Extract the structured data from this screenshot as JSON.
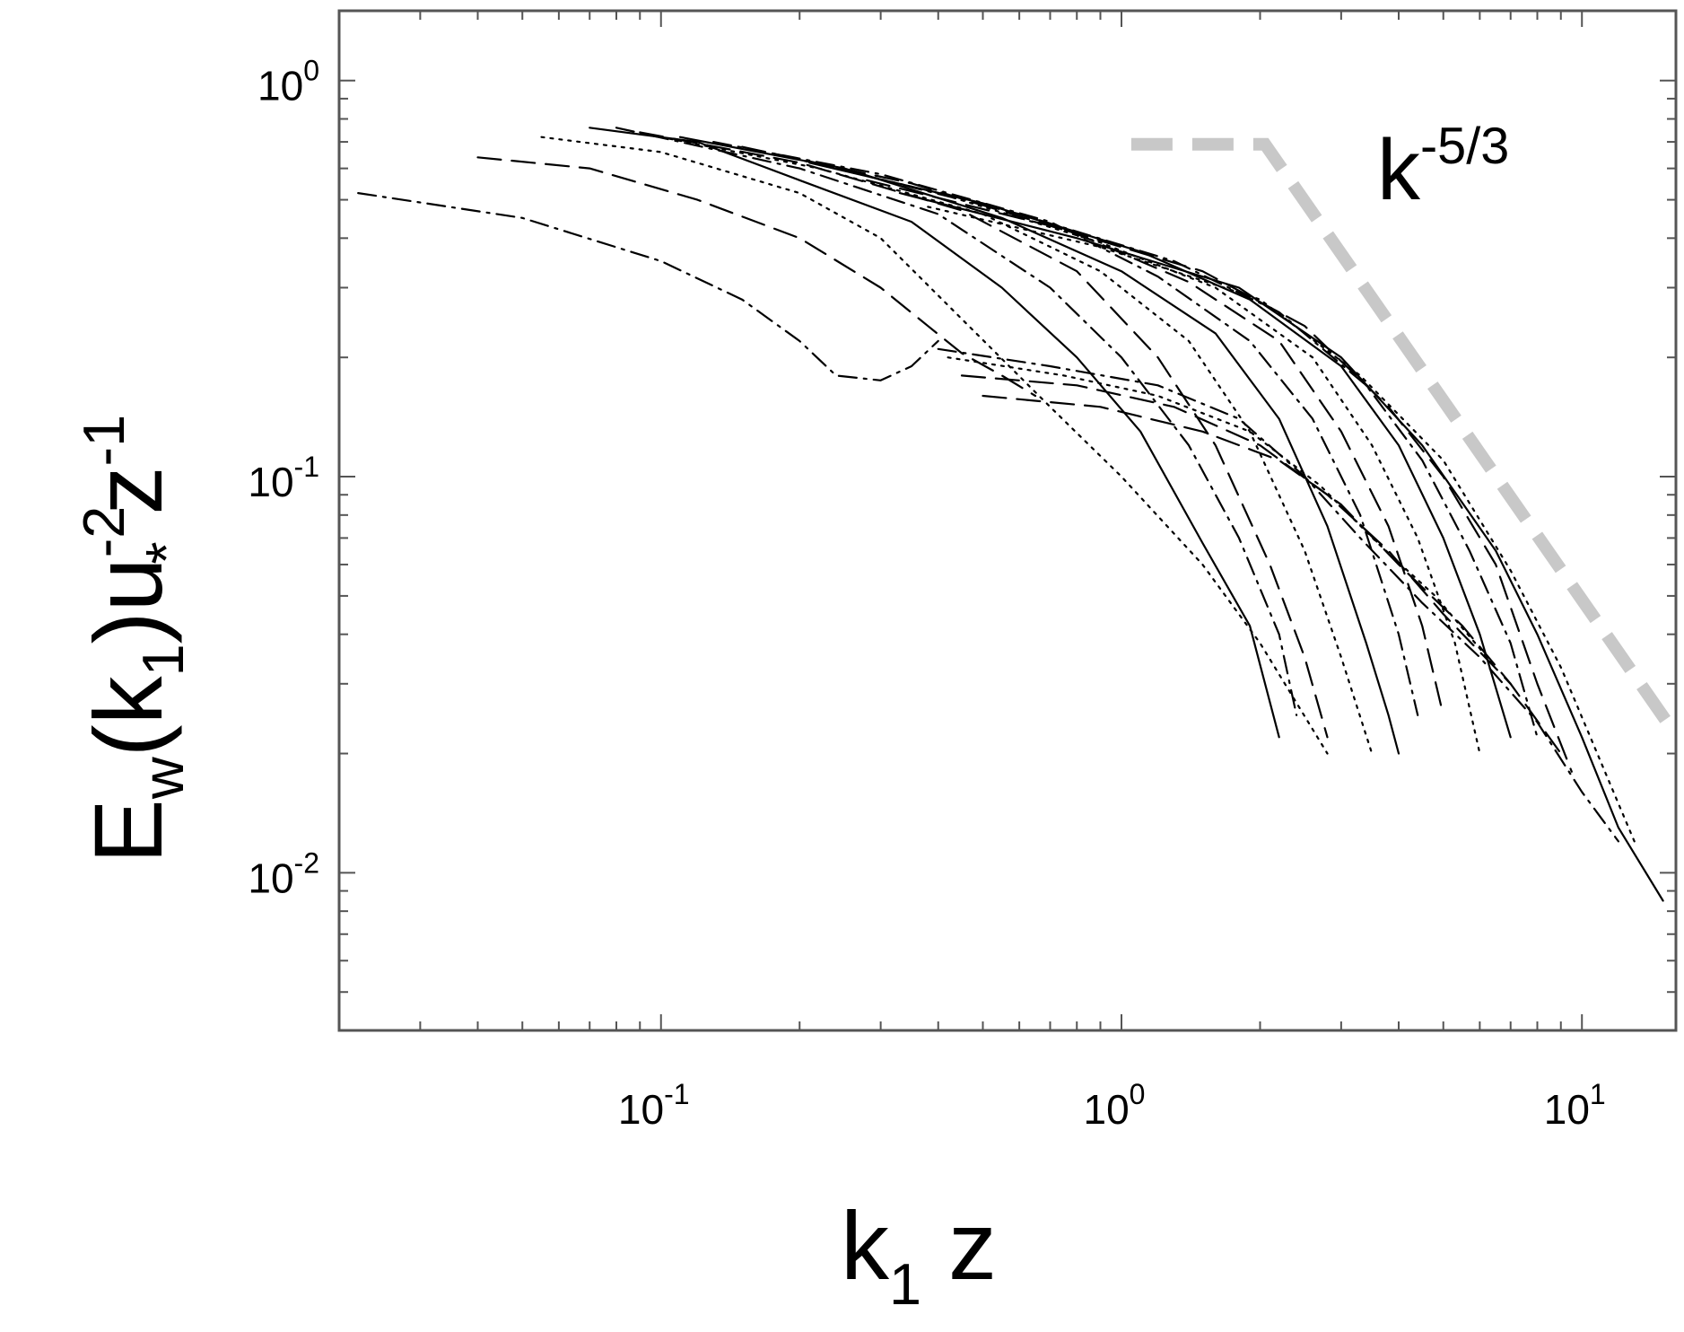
{
  "chart_data": {
    "type": "line",
    "xscale": "log",
    "yscale": "log",
    "xlim": [
      0.02,
      16
    ],
    "ylim": [
      0.004,
      1.5
    ],
    "grid": false,
    "legend": "none",
    "xlabel": {
      "base": "k",
      "sub": "1",
      "rest": " z"
    },
    "ylabel": {
      "p1": "E",
      "p1_sub": "w",
      "p2": "(k",
      "p2_sub": "1",
      "p3": ")u",
      "p3_sup": "-2",
      "p3_sub": "*",
      "p4": " z",
      "p4_sup": "-1"
    },
    "x_tick_labels": [
      {
        "value": 0.1,
        "base": "10",
        "exp": "-1"
      },
      {
        "value": 1,
        "base": "10",
        "exp": "0"
      },
      {
        "value": 10,
        "base": "10",
        "exp": "1"
      }
    ],
    "y_tick_labels": [
      {
        "value": 1,
        "base": "10",
        "exp": "0"
      },
      {
        "value": 0.1,
        "base": "10",
        "exp": "-1"
      },
      {
        "value": 0.01,
        "base": "10",
        "exp": "-2"
      }
    ],
    "reference_line": {
      "label_base": "k",
      "label_exp": "-5/3",
      "color": "#c8c8c8",
      "points": [
        [
          1.05,
          0.69
        ],
        [
          2.05,
          0.69
        ],
        [
          16,
          0.0223
        ]
      ]
    },
    "line_color": "#000000",
    "series": [
      {
        "style": "dashdot",
        "points": [
          [
            0.022,
            0.52
          ],
          [
            0.05,
            0.45
          ],
          [
            0.1,
            0.35
          ],
          [
            0.15,
            0.28
          ],
          [
            0.2,
            0.22
          ],
          [
            0.24,
            0.18
          ],
          [
            0.3,
            0.175
          ],
          [
            0.35,
            0.19
          ],
          [
            0.4,
            0.22
          ]
        ]
      },
      {
        "style": "dash",
        "points": [
          [
            0.04,
            0.64
          ],
          [
            0.07,
            0.6
          ],
          [
            0.12,
            0.5
          ],
          [
            0.2,
            0.4
          ],
          [
            0.3,
            0.3
          ],
          [
            0.38,
            0.24
          ],
          [
            0.45,
            0.205
          ],
          [
            0.55,
            0.18
          ],
          [
            0.65,
            0.16
          ]
        ]
      },
      {
        "style": "dot",
        "points": [
          [
            0.055,
            0.72
          ],
          [
            0.1,
            0.66
          ],
          [
            0.2,
            0.52
          ],
          [
            0.3,
            0.4
          ],
          [
            0.45,
            0.25
          ],
          [
            0.7,
            0.15
          ],
          [
            1.0,
            0.1
          ],
          [
            1.5,
            0.06
          ],
          [
            2.0,
            0.038
          ],
          [
            2.8,
            0.02
          ]
        ]
      },
      {
        "style": "solid",
        "points": [
          [
            0.07,
            0.76
          ],
          [
            0.12,
            0.7
          ],
          [
            0.2,
            0.56
          ],
          [
            0.35,
            0.44
          ],
          [
            0.55,
            0.3
          ],
          [
            0.8,
            0.2
          ],
          [
            1.1,
            0.13
          ],
          [
            1.5,
            0.068
          ],
          [
            1.9,
            0.042
          ],
          [
            2.2,
            0.022
          ]
        ]
      },
      {
        "style": "dashdot",
        "points": [
          [
            0.08,
            0.76
          ],
          [
            0.2,
            0.6
          ],
          [
            0.4,
            0.46
          ],
          [
            0.7,
            0.3
          ],
          [
            1.0,
            0.2
          ],
          [
            1.4,
            0.12
          ],
          [
            1.8,
            0.07
          ],
          [
            2.2,
            0.04
          ],
          [
            2.4,
            0.025
          ]
        ]
      },
      {
        "style": "dash",
        "points": [
          [
            0.09,
            0.74
          ],
          [
            0.2,
            0.62
          ],
          [
            0.45,
            0.47
          ],
          [
            0.8,
            0.33
          ],
          [
            1.2,
            0.2
          ],
          [
            1.6,
            0.12
          ],
          [
            2.1,
            0.06
          ],
          [
            2.5,
            0.035
          ],
          [
            2.8,
            0.022
          ]
        ]
      },
      {
        "style": "dot",
        "points": [
          [
            0.1,
            0.72
          ],
          [
            0.22,
            0.6
          ],
          [
            0.5,
            0.46
          ],
          [
            0.9,
            0.33
          ],
          [
            1.4,
            0.22
          ],
          [
            1.9,
            0.13
          ],
          [
            2.5,
            0.065
          ],
          [
            3.0,
            0.035
          ],
          [
            3.5,
            0.02
          ]
        ]
      },
      {
        "style": "solid",
        "points": [
          [
            0.11,
            0.72
          ],
          [
            0.25,
            0.6
          ],
          [
            0.55,
            0.45
          ],
          [
            1.0,
            0.33
          ],
          [
            1.6,
            0.23
          ],
          [
            2.2,
            0.14
          ],
          [
            2.8,
            0.075
          ],
          [
            3.4,
            0.038
          ],
          [
            3.8,
            0.025
          ],
          [
            4.0,
            0.02
          ]
        ]
      },
      {
        "style": "dashdot",
        "points": [
          [
            0.13,
            0.7
          ],
          [
            0.3,
            0.58
          ],
          [
            0.7,
            0.44
          ],
          [
            1.2,
            0.32
          ],
          [
            1.9,
            0.22
          ],
          [
            2.6,
            0.14
          ],
          [
            3.3,
            0.08
          ],
          [
            4.0,
            0.04
          ],
          [
            4.4,
            0.025
          ]
        ]
      },
      {
        "style": "dash",
        "points": [
          [
            0.15,
            0.68
          ],
          [
            0.35,
            0.55
          ],
          [
            0.8,
            0.41
          ],
          [
            1.4,
            0.31
          ],
          [
            2.2,
            0.22
          ],
          [
            3.0,
            0.13
          ],
          [
            3.8,
            0.075
          ],
          [
            4.5,
            0.042
          ],
          [
            5.0,
            0.025
          ]
        ]
      },
      {
        "style": "dot",
        "points": [
          [
            0.18,
            0.65
          ],
          [
            0.4,
            0.52
          ],
          [
            0.9,
            0.39
          ],
          [
            1.6,
            0.3
          ],
          [
            2.6,
            0.2
          ],
          [
            3.5,
            0.12
          ],
          [
            4.4,
            0.07
          ],
          [
            5.3,
            0.038
          ],
          [
            6.0,
            0.02
          ]
        ]
      },
      {
        "style": "solid",
        "points": [
          [
            0.21,
            0.62
          ],
          [
            0.5,
            0.49
          ],
          [
            1.1,
            0.37
          ],
          [
            1.9,
            0.28
          ],
          [
            3.0,
            0.19
          ],
          [
            4.0,
            0.12
          ],
          [
            5.0,
            0.07
          ],
          [
            6.0,
            0.04
          ],
          [
            7.0,
            0.022
          ]
        ]
      },
      {
        "style": "dashdot",
        "points": [
          [
            0.24,
            0.6
          ],
          [
            0.6,
            0.46
          ],
          [
            1.3,
            0.35
          ],
          [
            2.2,
            0.26
          ],
          [
            3.4,
            0.17
          ],
          [
            4.5,
            0.11
          ],
          [
            5.7,
            0.065
          ],
          [
            7.0,
            0.038
          ],
          [
            8.0,
            0.022
          ]
        ]
      },
      {
        "style": "dash",
        "points": [
          [
            0.28,
            0.56
          ],
          [
            0.7,
            0.43
          ],
          [
            1.5,
            0.33
          ],
          [
            2.5,
            0.24
          ],
          [
            3.8,
            0.15
          ],
          [
            5.0,
            0.1
          ],
          [
            6.5,
            0.06
          ],
          [
            8.0,
            0.03
          ],
          [
            9.5,
            0.018
          ]
        ]
      },
      {
        "style": "solid",
        "points": [
          [
            0.33,
            0.52
          ],
          [
            0.8,
            0.4
          ],
          [
            1.8,
            0.3
          ],
          [
            3.0,
            0.2
          ],
          [
            4.5,
            0.12
          ],
          [
            6.5,
            0.065
          ],
          [
            8.0,
            0.04
          ],
          [
            10.0,
            0.022
          ],
          [
            12.0,
            0.013
          ],
          [
            15.0,
            0.0085
          ]
        ]
      },
      {
        "style": "dot",
        "points": [
          [
            0.38,
            0.48
          ],
          [
            0.9,
            0.38
          ],
          [
            2.0,
            0.28
          ],
          [
            3.3,
            0.18
          ],
          [
            5.0,
            0.11
          ],
          [
            7.0,
            0.058
          ],
          [
            9.0,
            0.033
          ],
          [
            11.0,
            0.019
          ],
          [
            13.0,
            0.012
          ]
        ]
      },
      {
        "style": "dashdot",
        "points": [
          [
            0.4,
            0.21
          ],
          [
            0.7,
            0.19
          ],
          [
            1.2,
            0.17
          ],
          [
            1.8,
            0.14
          ],
          [
            2.5,
            0.1
          ],
          [
            3.3,
            0.07
          ],
          [
            4.5,
            0.048
          ],
          [
            6.0,
            0.035
          ],
          [
            8.0,
            0.024
          ],
          [
            10.0,
            0.016
          ],
          [
            12.0,
            0.012
          ]
        ]
      },
      {
        "style": "dash",
        "points": [
          [
            0.45,
            0.18
          ],
          [
            0.8,
            0.17
          ],
          [
            1.3,
            0.15
          ],
          [
            2.0,
            0.12
          ],
          [
            2.8,
            0.09
          ],
          [
            3.8,
            0.065
          ],
          [
            5.0,
            0.045
          ],
          [
            7.0,
            0.03
          ],
          [
            9.0,
            0.02
          ]
        ]
      },
      {
        "style": "dot",
        "points": [
          [
            0.42,
            0.2
          ],
          [
            0.75,
            0.18
          ],
          [
            1.2,
            0.16
          ],
          [
            1.9,
            0.13
          ],
          [
            2.7,
            0.095
          ],
          [
            3.6,
            0.068
          ],
          [
            4.8,
            0.05
          ],
          [
            6.5,
            0.033
          ]
        ]
      },
      {
        "style": "dash",
        "points": [
          [
            0.5,
            0.16
          ],
          [
            0.9,
            0.15
          ],
          [
            1.5,
            0.13
          ],
          [
            2.2,
            0.11
          ],
          [
            3.0,
            0.085
          ],
          [
            4.0,
            0.06
          ],
          [
            5.5,
            0.042
          ],
          [
            7.0,
            0.03
          ]
        ]
      }
    ]
  }
}
